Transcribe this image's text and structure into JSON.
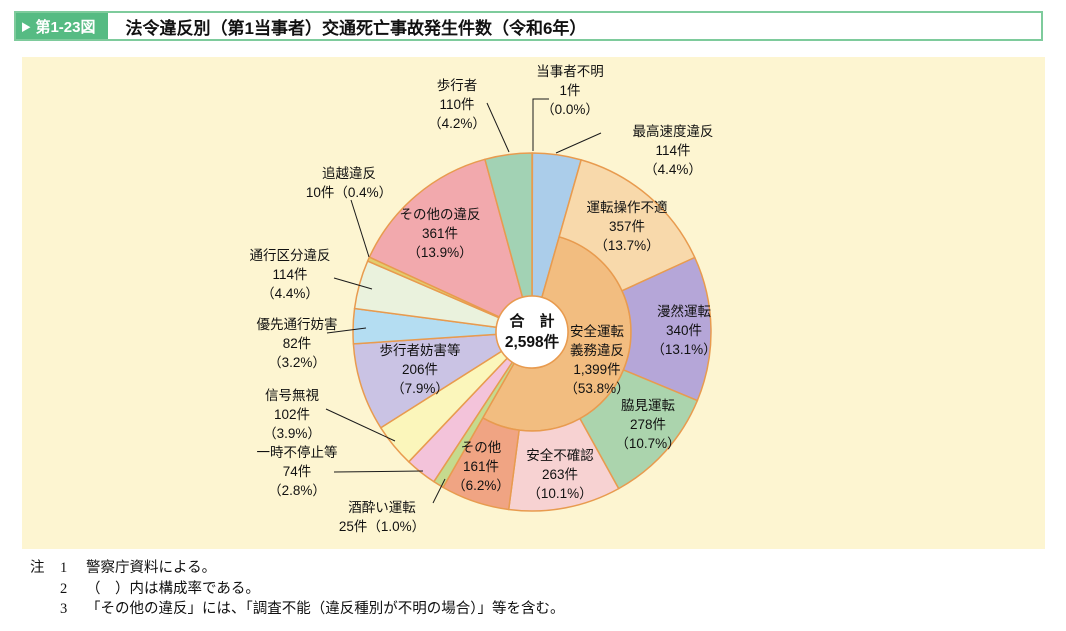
{
  "header": {
    "figure_label": "第1-23図",
    "title": "法令違反別（第1当事者）交通死亡事故発生件数（令和6年）"
  },
  "colors": {
    "accent_green": "#56bb83",
    "accent_green_border": "#7ecb9c",
    "panel_bg": "#fdf5d1",
    "wedge_stroke": "#e89b4f",
    "leader_line": "#1a1a1a"
  },
  "chart_data": {
    "type": "pie",
    "subtype": "nested-donut",
    "title": "法令違反別（第1当事者）交通死亡事故発生件数（令和6年）",
    "unit": "件",
    "legend_position": "none",
    "total": {
      "label": "合　計",
      "count_label": "2,598件",
      "value": 2598
    },
    "segments": [
      {
        "id": "tojisha-fumei",
        "name": "当事者不明",
        "value": 1,
        "count_label": "1件",
        "pct_label": "（0.0%）",
        "pct": 0.0,
        "color": "#ffffff",
        "label_lines": [
          "当事者不明",
          "1件",
          "（0.0%）"
        ]
      },
      {
        "id": "saiko-sokudo",
        "name": "最高速度違反",
        "value": 114,
        "count_label": "114件",
        "pct_label": "（4.4%）",
        "pct": 4.4,
        "color": "#abcdea",
        "label_lines": [
          "最高速度違反",
          "114件",
          "（4.4%）"
        ]
      },
      {
        "id": "anzen-unten-gimu",
        "name": "安全運転義務違反",
        "value": 1399,
        "count_label": "1,399件",
        "pct_label": "（53.8%）",
        "pct": 53.8,
        "color": "#f2bd80",
        "label_lines": [
          "安全運転",
          "義務違反",
          "1,399件",
          "（53.8%）"
        ],
        "children": [
          {
            "id": "unten-sosa",
            "name": "運転操作不適",
            "value": 357,
            "count_label": "357件",
            "pct_label": "（13.7%）",
            "pct": 13.7,
            "color": "#f8d9ab",
            "label_lines": [
              "運転操作不適",
              "357件",
              "（13.7%）"
            ]
          },
          {
            "id": "manzen",
            "name": "漫然運転",
            "value": 340,
            "count_label": "340件",
            "pct_label": "（13.1%）",
            "pct": 13.1,
            "color": "#b5a6d8",
            "label_lines": [
              "漫然運転",
              "340件",
              "（13.1%）"
            ]
          },
          {
            "id": "wakimi",
            "name": "脇見運転",
            "value": 278,
            "count_label": "278件",
            "pct_label": "（10.7%）",
            "pct": 10.7,
            "color": "#abd4ad",
            "label_lines": [
              "脇見運転",
              "278件",
              "（10.7%）"
            ]
          },
          {
            "id": "anzen-fukakunin",
            "name": "安全不確認",
            "value": 263,
            "count_label": "263件",
            "pct_label": "（10.1%）",
            "pct": 10.1,
            "color": "#f7d2d2",
            "label_lines": [
              "安全不確認",
              "263件",
              "（10.1%）"
            ]
          },
          {
            "id": "sonota-sub",
            "name": "その他",
            "value": 161,
            "count_label": "161件",
            "pct_label": "（6.2%）",
            "pct": 6.2,
            "color": "#f0a483",
            "label_lines": [
              "その他",
              "161件",
              "（6.2%）"
            ]
          }
        ]
      },
      {
        "id": "sake",
        "name": "酒酔い運転",
        "value": 25,
        "count_label": "25件",
        "pct_label": "（1.0%）",
        "pct": 1.0,
        "color": "#c5da8e",
        "label_lines": [
          "酒酔い運転",
          "25件（1.0%）"
        ]
      },
      {
        "id": "ichiji",
        "name": "一時不停止等",
        "value": 74,
        "count_label": "74件",
        "pct_label": "（2.8%）",
        "pct": 2.8,
        "color": "#f3c3da",
        "label_lines": [
          "一時不停止等",
          "74件",
          "（2.8%）"
        ]
      },
      {
        "id": "shingo",
        "name": "信号無視",
        "value": 102,
        "count_label": "102件",
        "pct_label": "（3.9%）",
        "pct": 3.9,
        "color": "#fbf6bb",
        "label_lines": [
          "信号無視",
          "102件",
          "（3.9%）"
        ]
      },
      {
        "id": "hokosha-bogai",
        "name": "歩行者妨害等",
        "value": 206,
        "count_label": "206件",
        "pct_label": "（7.9%）",
        "pct": 7.9,
        "color": "#cac3e4",
        "label_lines": [
          "歩行者妨害等",
          "206件",
          "（7.9%）"
        ]
      },
      {
        "id": "yusen",
        "name": "優先通行妨害",
        "value": 82,
        "count_label": "82件",
        "pct_label": "（3.2%）",
        "pct": 3.2,
        "color": "#b4ddf2",
        "label_lines": [
          "優先通行妨害",
          "82件",
          "（3.2%）"
        ]
      },
      {
        "id": "tsuko-kubun",
        "name": "通行区分違反",
        "value": 114,
        "count_label": "114件",
        "pct_label": "（4.4%）",
        "pct": 4.4,
        "color": "#eaf2dd",
        "label_lines": [
          "通行区分違反",
          "114件",
          "（4.4%）"
        ]
      },
      {
        "id": "oikoshi",
        "name": "追越違反",
        "value": 10,
        "count_label": "10件",
        "pct_label": "（0.4%）",
        "pct": 0.4,
        "color": "#e2cd6d",
        "label_lines": [
          "追越違反",
          "10件（0.4%）"
        ]
      },
      {
        "id": "sonota-ihan",
        "name": "その他の違反",
        "value": 361,
        "count_label": "361件",
        "pct_label": "（13.9%）",
        "pct": 13.9,
        "color": "#f2a9ad",
        "label_lines": [
          "その他の違反",
          "361件",
          "（13.9%）"
        ]
      },
      {
        "id": "hokosha",
        "name": "歩行者",
        "value": 110,
        "count_label": "110件",
        "pct_label": "（4.2%）",
        "pct": 4.2,
        "color": "#a2d2b4",
        "label_lines": [
          "歩行者",
          "110件",
          "（4.2%）"
        ]
      }
    ]
  },
  "notes": {
    "marker": "注",
    "items": [
      {
        "num": "1",
        "text": "警察庁資料による。"
      },
      {
        "num": "2",
        "text": "（　）内は構成率である。"
      },
      {
        "num": "3",
        "text": "「その他の違反」には、「調査不能（違反種別が不明の場合）」等を含む。"
      }
    ]
  }
}
